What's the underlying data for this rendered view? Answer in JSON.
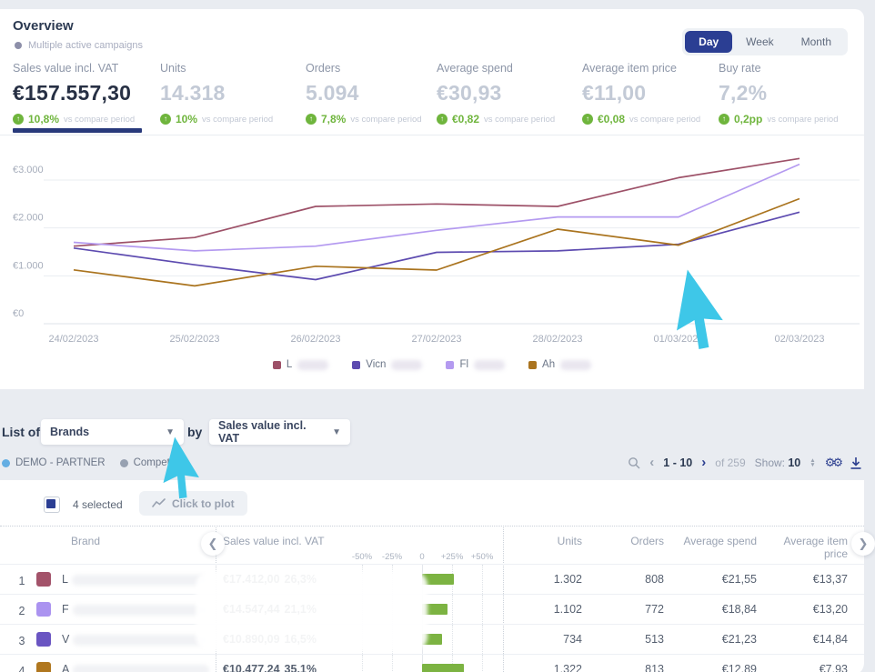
{
  "overview": {
    "title": "Overview",
    "subtitle": "Multiple active campaigns",
    "period_toggle": {
      "options": [
        "Day",
        "Week",
        "Month"
      ],
      "selected": "Day"
    },
    "kpis": [
      {
        "label": "Sales value incl. VAT",
        "value": "€157.557,30",
        "delta": "10,8%",
        "delta_suffix": "vs compare period",
        "active": true
      },
      {
        "label": "Units",
        "value": "14.318",
        "delta": "10%",
        "delta_suffix": "vs compare period",
        "active": false
      },
      {
        "label": "Orders",
        "value": "5.094",
        "delta": "7,8%",
        "delta_suffix": "vs compare period",
        "active": false
      },
      {
        "label": "Average spend",
        "value": "€30,93",
        "delta": "€0,82",
        "delta_suffix": "vs compare period",
        "active": false
      },
      {
        "label": "Average item price",
        "value": "€11,00",
        "delta": "€0,08",
        "delta_suffix": "vs compare period",
        "active": false
      },
      {
        "label": "Buy rate",
        "value": "7,2%",
        "delta": "0,2pp",
        "delta_suffix": "vs compare period",
        "active": false
      }
    ]
  },
  "chart_data": {
    "type": "line",
    "x": [
      "24/02/2023",
      "25/02/2023",
      "26/02/2023",
      "27/02/2023",
      "28/02/2023",
      "01/03/2023",
      "02/03/2023"
    ],
    "yticks": [
      {
        "label": "€3.000",
        "value": 3000
      },
      {
        "label": "€2.000",
        "value": 2000
      },
      {
        "label": "€1.000",
        "value": 1000
      },
      {
        "label": "€0",
        "value": 0
      }
    ],
    "ylim": [
      0,
      3500
    ],
    "grid": true,
    "legend_position": "bottom",
    "series": [
      {
        "name_prefix": "L",
        "masked": true,
        "color": "#9d5168",
        "values": [
          1620,
          1800,
          2450,
          2500,
          2450,
          3050,
          3450
        ]
      },
      {
        "name_prefix": "Vicn",
        "masked": true,
        "color": "#5d4bb0",
        "values": [
          1580,
          1230,
          920,
          1490,
          1520,
          1660,
          2330
        ]
      },
      {
        "name_prefix": "Fl",
        "masked": true,
        "color": "#b49af0",
        "values": [
          1700,
          1520,
          1620,
          1950,
          2230,
          2230,
          3330
        ]
      },
      {
        "name_prefix": "Ah",
        "masked": true,
        "color": "#aa741f",
        "values": [
          1125,
          790,
          1200,
          1120,
          1975,
          1640,
          2610
        ]
      }
    ]
  },
  "list_controls": {
    "list_of_label": "List of",
    "list_of_value": "Brands",
    "by_label": "by",
    "by_value": "Sales value incl. VAT",
    "datasets": [
      {
        "label": "DEMO - PARTNER",
        "dot_color": "#64aee3"
      },
      {
        "label": "Competitive",
        "dot_color": "#97a1b1"
      }
    ]
  },
  "pagination": {
    "range": "1 - 10",
    "of": "of 259",
    "show_label": "Show:",
    "show_value": "10"
  },
  "selection": {
    "count": "4 selected",
    "plot_button": "Click to plot"
  },
  "table": {
    "headers": {
      "brand": "Brand",
      "sales": "Sales value incl. VAT",
      "units": "Units",
      "orders": "Orders",
      "avg_spend": "Average spend",
      "avg_item": "Average item price"
    },
    "scale_labels": [
      "-50%",
      "-25%",
      "0",
      "+25%",
      "+50%"
    ],
    "rows": [
      {
        "index": "1",
        "color": "#a3536a",
        "name_prefix": "L",
        "sales": "€17.412,00",
        "pct": "26,3%",
        "pct_value": 26.3,
        "units": "1.302",
        "orders": "808",
        "avg_spend": "€21,55",
        "avg_item": "€13,37"
      },
      {
        "index": "2",
        "color": "#ab93f0",
        "name_prefix": "F",
        "sales": "€14.547,44",
        "pct": "21,1%",
        "pct_value": 21.1,
        "units": "1.102",
        "orders": "772",
        "avg_spend": "€18,84",
        "avg_item": "€13,20"
      },
      {
        "index": "3",
        "color": "#6a55c2",
        "name_prefix": "V",
        "sales": "€10.890,09",
        "pct": "16,5%",
        "pct_value": 16.5,
        "units": "734",
        "orders": "513",
        "avg_spend": "€21,23",
        "avg_item": "€14,84"
      },
      {
        "index": "4",
        "color": "#b0771f",
        "name_prefix": "A",
        "sales": "€10.477,24",
        "pct": "35,1%",
        "pct_value": 35.1,
        "units": "1.322",
        "orders": "813",
        "avg_spend": "€12,89",
        "avg_item": "€7,93"
      }
    ]
  },
  "colors": {
    "accent_navy": "#2b3e93",
    "positive_green": "#6fb53d",
    "bar_green": "#7cb342",
    "cursor_cyan": "#3ec7e8"
  }
}
